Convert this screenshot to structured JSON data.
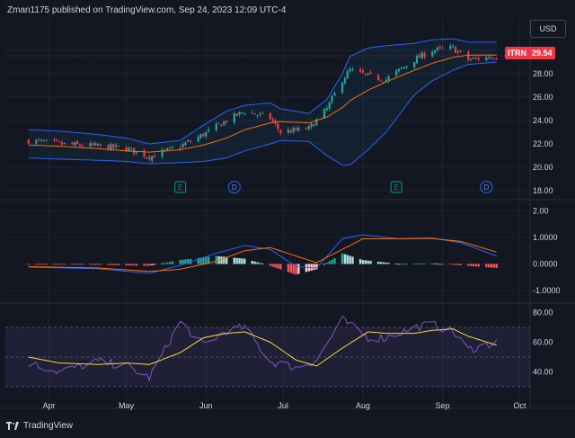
{
  "header": {
    "attribution": "Zman1175 published on TradingView.com, Sep 24, 2023 12:09 UTC-4"
  },
  "currency_button": "USD",
  "price_tag": {
    "symbol": "ITRN",
    "price": "29.54"
  },
  "brand": {
    "name": "TradingView"
  },
  "colors": {
    "background": "#131722",
    "up": "#26a69a",
    "down": "#f23645",
    "bollinger": "#2962ff",
    "ma": "#ff6d00",
    "macd": "#2962ff",
    "signal": "#ff6d00",
    "rsi": "#7e57c2",
    "rsi_ma": "#fdd835"
  },
  "chart_data": [
    {
      "type": "candlestick",
      "panel": "price",
      "y_ticks": [
        "30.00",
        "28.00",
        "26.00",
        "24.00",
        "22.00",
        "20.00",
        "18.00"
      ],
      "ylim": [
        18,
        31
      ],
      "last_price": 29.54,
      "x_ticks": [
        "Apr",
        "May",
        "Jun",
        "Jul",
        "Aug",
        "Sep",
        "Oct"
      ],
      "events": [
        {
          "label": "E",
          "date": "2023-05-22"
        },
        {
          "label": "D",
          "date": "2023-06-12"
        },
        {
          "label": "E",
          "date": "2023-08-14"
        },
        {
          "label": "D",
          "date": "2023-09-18"
        }
      ],
      "anchors": {
        "dates": [
          "2023-03-24",
          "2023-04-05",
          "2023-04-20",
          "2023-05-01",
          "2023-05-10",
          "2023-05-22",
          "2023-05-31",
          "2023-06-09",
          "2023-06-16",
          "2023-06-26",
          "2023-06-30",
          "2023-07-11",
          "2023-07-18",
          "2023-07-24",
          "2023-07-27",
          "2023-08-03",
          "2023-08-10",
          "2023-08-21",
          "2023-08-28",
          "2023-09-05",
          "2023-09-11",
          "2023-09-22"
        ],
        "close": [
          22.3,
          22.0,
          21.8,
          21.6,
          20.9,
          21.8,
          22.8,
          24.0,
          24.8,
          24.2,
          23.0,
          23.3,
          25.0,
          27.5,
          28.3,
          27.8,
          27.5,
          29.2,
          30.0,
          30.2,
          29.2,
          29.5
        ],
        "ma": [
          21.9,
          21.8,
          21.6,
          21.4,
          21.3,
          21.5,
          21.9,
          22.5,
          23.2,
          23.8,
          23.9,
          23.8,
          24.3,
          25.1,
          25.7,
          26.6,
          27.3,
          28.3,
          28.9,
          29.4,
          29.6,
          29.6
        ],
        "upper": [
          23.2,
          23.1,
          22.8,
          22.5,
          22.0,
          22.3,
          23.6,
          24.8,
          25.3,
          25.5,
          25.0,
          24.6,
          25.8,
          28.0,
          29.5,
          30.2,
          30.4,
          30.6,
          30.9,
          31.0,
          30.7,
          30.7
        ],
        "lower": [
          20.8,
          20.7,
          20.6,
          20.5,
          20.3,
          20.4,
          20.5,
          20.8,
          21.4,
          22.0,
          22.3,
          22.2,
          21.0,
          20.2,
          20.2,
          21.5,
          23.0,
          26.2,
          27.4,
          28.3,
          28.8,
          29.0
        ]
      }
    },
    {
      "type": "line+histogram",
      "panel": "MACD",
      "y_ticks": [
        "2.00",
        "1.0000",
        "0.0000",
        "-1.0000"
      ],
      "ylim": [
        -1.5,
        2.2
      ],
      "anchors": {
        "dates": [
          "2023-03-24",
          "2023-04-20",
          "2023-05-10",
          "2023-05-22",
          "2023-06-05",
          "2023-06-16",
          "2023-06-26",
          "2023-07-06",
          "2023-07-14",
          "2023-07-24",
          "2023-08-01",
          "2023-08-15",
          "2023-08-28",
          "2023-09-08",
          "2023-09-22"
        ],
        "macd": [
          -0.12,
          -0.18,
          -0.35,
          -0.05,
          0.4,
          0.7,
          0.55,
          -0.1,
          -0.15,
          0.95,
          1.1,
          0.95,
          0.98,
          0.8,
          0.3
        ],
        "signal": [
          -0.1,
          -0.15,
          -0.28,
          -0.2,
          0.1,
          0.5,
          0.62,
          0.3,
          0.05,
          0.55,
          0.95,
          0.95,
          0.96,
          0.85,
          0.45
        ]
      }
    },
    {
      "type": "line",
      "panel": "RSI",
      "y_ticks": [
        "80.00",
        "60.00",
        "40.00"
      ],
      "ylim": [
        30,
        80
      ],
      "bands": [
        70,
        50,
        30
      ],
      "anchors": {
        "dates": [
          "2023-03-24",
          "2023-04-05",
          "2023-04-20",
          "2023-05-01",
          "2023-05-10",
          "2023-05-22",
          "2023-05-31",
          "2023-06-09",
          "2023-06-16",
          "2023-06-26",
          "2023-07-06",
          "2023-07-14",
          "2023-07-24",
          "2023-08-03",
          "2023-08-10",
          "2023-08-21",
          "2023-08-28",
          "2023-09-05",
          "2023-09-11",
          "2023-09-22"
        ],
        "rsi": [
          46,
          40,
          47,
          44,
          36,
          74,
          58,
          68,
          70,
          47,
          43,
          48,
          75,
          63,
          63,
          70,
          72,
          67,
          55,
          60
        ],
        "rsi_ma": [
          50,
          46,
          45,
          46,
          45,
          53,
          63,
          66,
          67,
          60,
          48,
          44,
          56,
          67,
          66,
          66,
          68,
          69,
          64,
          58
        ]
      }
    }
  ]
}
